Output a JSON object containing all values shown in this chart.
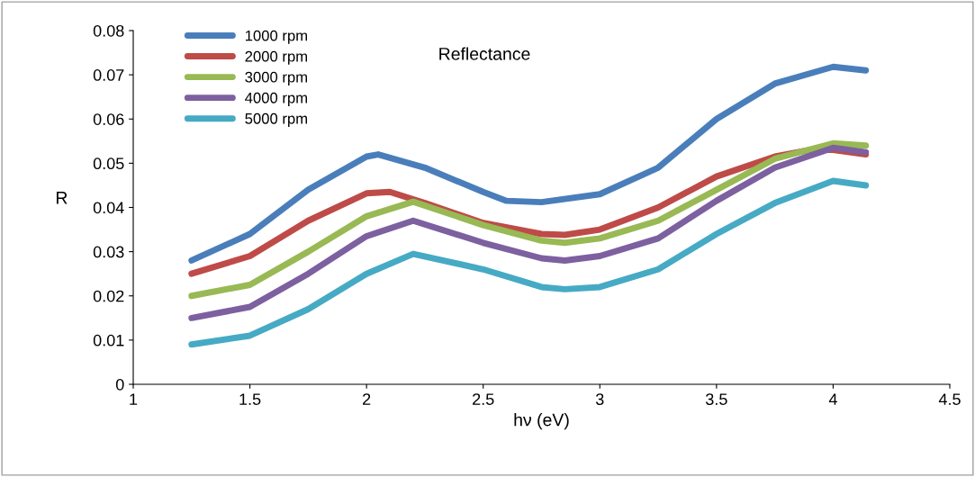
{
  "chart_data": {
    "type": "line",
    "title": "Reflectance",
    "xlabel": "hν (eV)",
    "ylabel": "R",
    "xlim": [
      1,
      4.5
    ],
    "xticks": [
      1,
      1.5,
      2,
      2.5,
      3,
      3.5,
      4,
      4.5
    ],
    "ylim": [
      0,
      0.08
    ],
    "yticks": [
      0,
      0.01,
      0.02,
      0.03,
      0.04,
      0.05,
      0.06,
      0.07,
      0.08
    ],
    "grid": false,
    "legend": "top left",
    "line_style": "solid",
    "series": [
      {
        "name": "1000 rpm",
        "color": "#4a7ebb",
        "x": [
          1.25,
          1.5,
          1.75,
          2.0,
          2.05,
          2.25,
          2.5,
          2.6,
          2.75,
          3.0,
          3.25,
          3.5,
          3.75,
          4.0,
          4.14
        ],
        "values": [
          0.028,
          0.034,
          0.044,
          0.0515,
          0.052,
          0.049,
          0.0435,
          0.0415,
          0.0412,
          0.043,
          0.049,
          0.06,
          0.068,
          0.0718,
          0.071
        ]
      },
      {
        "name": "2000 rpm",
        "color": "#be4b48",
        "x": [
          1.25,
          1.5,
          1.75,
          2.0,
          2.1,
          2.25,
          2.5,
          2.75,
          2.85,
          3.0,
          3.25,
          3.5,
          3.75,
          3.9,
          4.0,
          4.14
        ],
        "values": [
          0.025,
          0.029,
          0.037,
          0.0432,
          0.0435,
          0.041,
          0.0365,
          0.034,
          0.0338,
          0.035,
          0.04,
          0.047,
          0.0515,
          0.053,
          0.053,
          0.052
        ]
      },
      {
        "name": "3000 rpm",
        "color": "#98b954",
        "x": [
          1.25,
          1.5,
          1.75,
          2.0,
          2.2,
          2.5,
          2.75,
          2.85,
          3.0,
          3.25,
          3.5,
          3.75,
          4.0,
          4.14
        ],
        "values": [
          0.02,
          0.0225,
          0.03,
          0.038,
          0.0413,
          0.036,
          0.0325,
          0.032,
          0.033,
          0.037,
          0.044,
          0.051,
          0.0545,
          0.054
        ]
      },
      {
        "name": "4000 rpm",
        "color": "#7d60a0",
        "x": [
          1.25,
          1.5,
          1.75,
          2.0,
          2.2,
          2.5,
          2.75,
          2.85,
          3.0,
          3.25,
          3.5,
          3.75,
          4.0,
          4.14
        ],
        "values": [
          0.015,
          0.0175,
          0.025,
          0.0335,
          0.037,
          0.032,
          0.0285,
          0.028,
          0.029,
          0.033,
          0.0415,
          0.049,
          0.0535,
          0.0525
        ]
      },
      {
        "name": "5000 rpm",
        "color": "#46aac5",
        "x": [
          1.25,
          1.5,
          1.75,
          2.0,
          2.2,
          2.5,
          2.75,
          2.85,
          3.0,
          3.25,
          3.5,
          3.75,
          4.0,
          4.14
        ],
        "values": [
          0.009,
          0.011,
          0.017,
          0.025,
          0.0295,
          0.026,
          0.022,
          0.0215,
          0.022,
          0.026,
          0.034,
          0.041,
          0.046,
          0.045
        ]
      }
    ]
  }
}
